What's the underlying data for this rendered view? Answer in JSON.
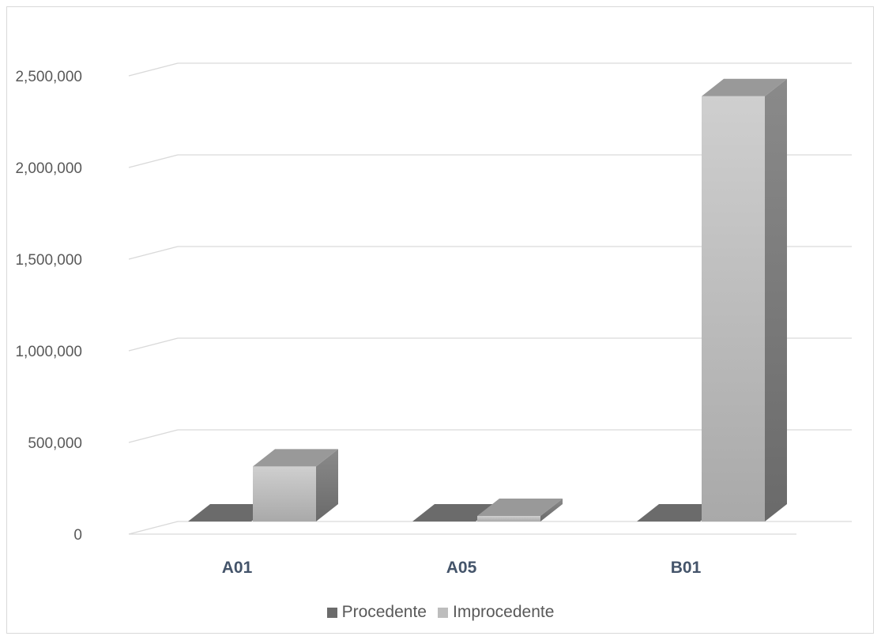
{
  "chart_data": {
    "type": "bar",
    "style": "3d-clustered-column",
    "categories": [
      "A01",
      "A05",
      "B01"
    ],
    "series": [
      {
        "name": "Procedente",
        "values": [
          0,
          0,
          0
        ],
        "color": "#6b6b6b"
      },
      {
        "name": "Improcedente",
        "values": [
          300000,
          30000,
          2320000
        ],
        "color": "#bdbdbd"
      }
    ],
    "y_ticks": [
      "0",
      "500,000",
      "1,000,000",
      "1,500,000",
      "2,000,000",
      "2,500,000"
    ],
    "ylim": [
      0,
      2500000
    ],
    "grid": true,
    "legend_position": "bottom",
    "title": "",
    "xlabel": "",
    "ylabel": ""
  },
  "legend": {
    "items": [
      {
        "label": "Procedente",
        "color": "#6b6b6b"
      },
      {
        "label": "Improcedente",
        "color": "#bdbdbd"
      }
    ]
  }
}
